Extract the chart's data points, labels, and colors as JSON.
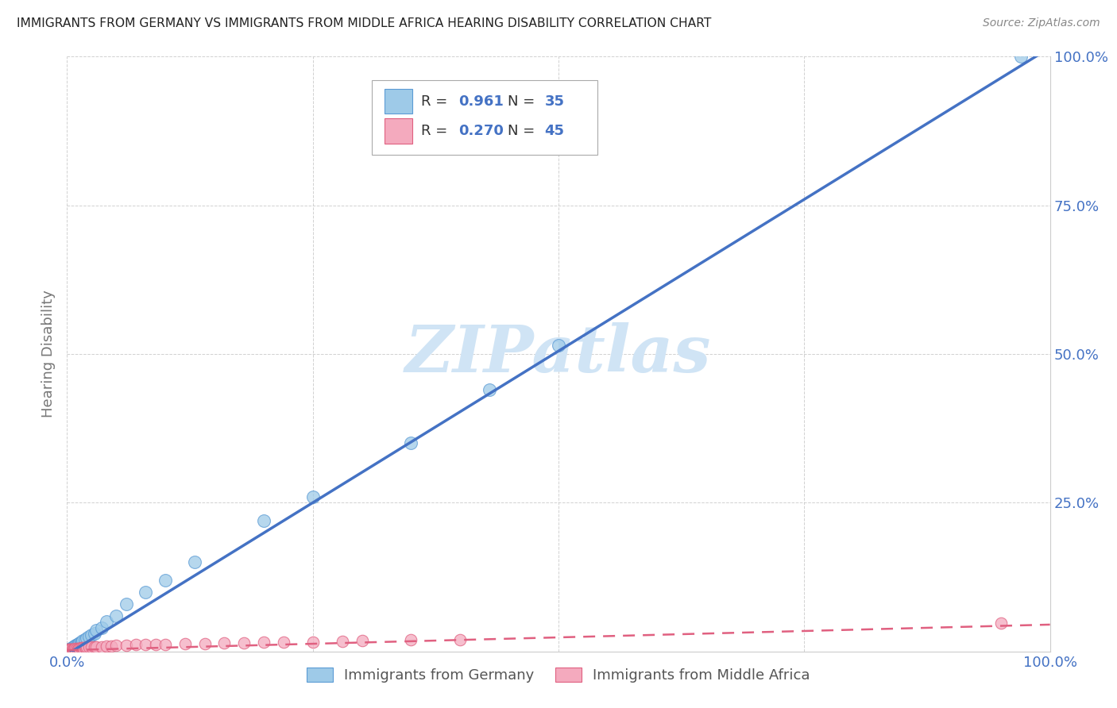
{
  "title": "IMMIGRANTS FROM GERMANY VS IMMIGRANTS FROM MIDDLE AFRICA HEARING DISABILITY CORRELATION CHART",
  "source": "Source: ZipAtlas.com",
  "ylabel": "Hearing Disability",
  "xlim": [
    0,
    1.0
  ],
  "ylim": [
    0,
    1.0
  ],
  "xtick_labels": [
    "0.0%",
    "",
    "",
    "",
    "100.0%"
  ],
  "xtick_positions": [
    0,
    0.25,
    0.5,
    0.75,
    1.0
  ],
  "ytick_labels": [
    "",
    "25.0%",
    "50.0%",
    "75.0%",
    "100.0%"
  ],
  "ytick_positions": [
    0,
    0.25,
    0.5,
    0.75,
    1.0
  ],
  "legend_R1_val": "0.961",
  "legend_N1_val": "35",
  "legend_R2_val": "0.270",
  "legend_N2_val": "45",
  "color_blue": "#9ECAE8",
  "color_blue_dark": "#5B9BD5",
  "color_blue_line": "#4472C4",
  "color_pink": "#F4AABE",
  "color_pink_dark": "#E06080",
  "color_pink_line": "#E06080",
  "watermark": "ZIPatlas",
  "watermark_color": "#D0E4F5",
  "legend_label_blue": "Immigrants from Germany",
  "legend_label_pink": "Immigrants from Middle Africa",
  "germany_x": [
    0.001,
    0.002,
    0.003,
    0.004,
    0.005,
    0.006,
    0.007,
    0.008,
    0.009,
    0.01,
    0.011,
    0.012,
    0.013,
    0.014,
    0.015,
    0.016,
    0.018,
    0.02,
    0.022,
    0.025,
    0.028,
    0.03,
    0.035,
    0.04,
    0.05,
    0.06,
    0.08,
    0.1,
    0.13,
    0.2,
    0.25,
    0.35,
    0.43,
    0.5,
    0.97
  ],
  "germany_y": [
    0.002,
    0.003,
    0.004,
    0.005,
    0.006,
    0.007,
    0.008,
    0.009,
    0.01,
    0.011,
    0.012,
    0.013,
    0.014,
    0.015,
    0.016,
    0.018,
    0.02,
    0.022,
    0.025,
    0.028,
    0.03,
    0.035,
    0.04,
    0.05,
    0.06,
    0.08,
    0.1,
    0.12,
    0.15,
    0.22,
    0.26,
    0.35,
    0.44,
    0.515,
    1.0
  ],
  "middle_africa_x": [
    0.001,
    0.002,
    0.003,
    0.004,
    0.005,
    0.006,
    0.007,
    0.008,
    0.009,
    0.01,
    0.011,
    0.012,
    0.013,
    0.014,
    0.015,
    0.016,
    0.017,
    0.018,
    0.019,
    0.02,
    0.022,
    0.025,
    0.028,
    0.03,
    0.035,
    0.04,
    0.045,
    0.05,
    0.06,
    0.07,
    0.08,
    0.09,
    0.1,
    0.12,
    0.14,
    0.16,
    0.18,
    0.2,
    0.22,
    0.25,
    0.28,
    0.3,
    0.35,
    0.4,
    0.95
  ],
  "middle_africa_y": [
    0.003,
    0.004,
    0.003,
    0.004,
    0.004,
    0.003,
    0.004,
    0.005,
    0.004,
    0.005,
    0.004,
    0.005,
    0.005,
    0.006,
    0.005,
    0.006,
    0.005,
    0.006,
    0.006,
    0.007,
    0.007,
    0.007,
    0.008,
    0.008,
    0.008,
    0.009,
    0.009,
    0.01,
    0.01,
    0.011,
    0.011,
    0.012,
    0.012,
    0.013,
    0.013,
    0.014,
    0.014,
    0.015,
    0.015,
    0.016,
    0.017,
    0.018,
    0.019,
    0.02,
    0.048
  ],
  "blue_line_slope": 1.02,
  "blue_line_intercept": -0.005,
  "pink_line_slope": 0.043,
  "pink_line_intercept": 0.002
}
